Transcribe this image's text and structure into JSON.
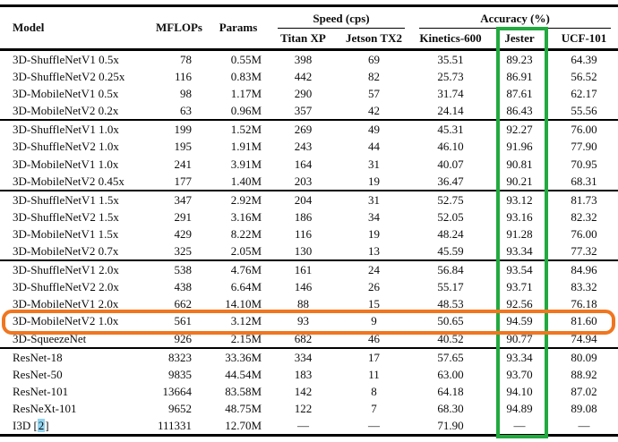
{
  "table": {
    "header": {
      "model": "Model",
      "mflops": "MFLOPs",
      "params": "Params",
      "speed_group": "Speed (cps)",
      "accuracy_group": "Accuracy (%)",
      "speed_cols": [
        "Titan XP",
        "Jetson TX2"
      ],
      "accuracy_cols": [
        "Kinetics-600",
        "Jester",
        "UCF-101"
      ]
    },
    "columns": [
      "Model",
      "MFLOPs",
      "Params",
      "Titan XP",
      "Jetson TX2",
      "Kinetics-600",
      "Jester",
      "UCF-101"
    ],
    "groups": [
      {
        "rows": [
          [
            "3D-ShuffleNetV1 0.5x",
            "78",
            "0.55M",
            "398",
            "69",
            "35.51",
            "89.23",
            "64.39"
          ],
          [
            "3D-ShuffleNetV2 0.25x",
            "116",
            "0.83M",
            "442",
            "82",
            "25.73",
            "86.91",
            "56.52"
          ],
          [
            "3D-MobileNetV1 0.5x",
            "98",
            "1.17M",
            "290",
            "57",
            "31.74",
            "87.61",
            "62.17"
          ],
          [
            "3D-MobileNetV2 0.2x",
            "63",
            "0.96M",
            "357",
            "42",
            "24.14",
            "86.43",
            "55.56"
          ]
        ]
      },
      {
        "rows": [
          [
            "3D-ShuffleNetV1 1.0x",
            "199",
            "1.52M",
            "269",
            "49",
            "45.31",
            "92.27",
            "76.00"
          ],
          [
            "3D-ShuffleNetV2 1.0x",
            "195",
            "1.91M",
            "243",
            "44",
            "46.10",
            "91.96",
            "77.90"
          ],
          [
            "3D-MobileNetV1 1.0x",
            "241",
            "3.91M",
            "164",
            "31",
            "40.07",
            "90.81",
            "70.95"
          ],
          [
            "3D-MobileNetV2 0.45x",
            "177",
            "1.40M",
            "203",
            "19",
            "36.47",
            "90.21",
            "68.31"
          ]
        ]
      },
      {
        "rows": [
          [
            "3D-ShuffleNetV1 1.5x",
            "347",
            "2.92M",
            "204",
            "31",
            "52.75",
            "93.12",
            "81.73"
          ],
          [
            "3D-ShuffleNetV2 1.5x",
            "291",
            "3.16M",
            "186",
            "34",
            "52.05",
            "93.16",
            "82.32"
          ],
          [
            "3D-MobileNetV1 1.5x",
            "429",
            "8.22M",
            "116",
            "19",
            "48.24",
            "91.28",
            "76.00"
          ],
          [
            "3D-MobileNetV2 0.7x",
            "325",
            "2.05M",
            "130",
            "13",
            "45.59",
            "93.34",
            "77.32"
          ]
        ]
      },
      {
        "rows": [
          [
            "3D-ShuffleNetV1 2.0x",
            "538",
            "4.76M",
            "161",
            "24",
            "56.84",
            "93.54",
            "84.96"
          ],
          [
            "3D-ShuffleNetV2 2.0x",
            "438",
            "6.64M",
            "146",
            "26",
            "55.17",
            "93.71",
            "83.32"
          ],
          [
            "3D-MobileNetV1 2.0x",
            "662",
            "14.10M",
            "88",
            "15",
            "48.53",
            "92.56",
            "76.18"
          ],
          [
            "3D-MobileNetV2 1.0x",
            "561",
            "3.12M",
            "93",
            "9",
            "50.65",
            "94.59",
            "81.60"
          ],
          [
            "3D-SqueezeNet",
            "926",
            "2.15M",
            "682",
            "46",
            "40.52",
            "90.77",
            "74.94"
          ]
        ]
      },
      {
        "rows": [
          [
            "ResNet-18",
            "8323",
            "33.36M",
            "334",
            "17",
            "57.65",
            "93.34",
            "80.09"
          ],
          [
            "ResNet-50",
            "9835",
            "44.54M",
            "183",
            "11",
            "63.00",
            "93.70",
            "88.92"
          ],
          [
            "ResNet-101",
            "13664",
            "83.58M",
            "142",
            "8",
            "64.18",
            "94.10",
            "87.02"
          ],
          [
            "ResNeXt-101",
            "9652",
            "48.75M",
            "122",
            "7",
            "68.30",
            "94.89",
            "89.08"
          ],
          [
            "I3D [2]",
            "111331",
            "12.70M",
            "—",
            "—",
            "71.90",
            "—",
            "—"
          ]
        ]
      }
    ],
    "citation": {
      "model": "I3D [2]",
      "prefix": "I3D [",
      "ref": "2",
      "suffix": "]",
      "link_bg": "#93d4ef"
    }
  },
  "highlights": {
    "highlighted_column": "Jester",
    "column_color": "#22a93f",
    "highlighted_row": "3D-MobileNetV2 1.0x",
    "row_color": "#f0761f"
  }
}
